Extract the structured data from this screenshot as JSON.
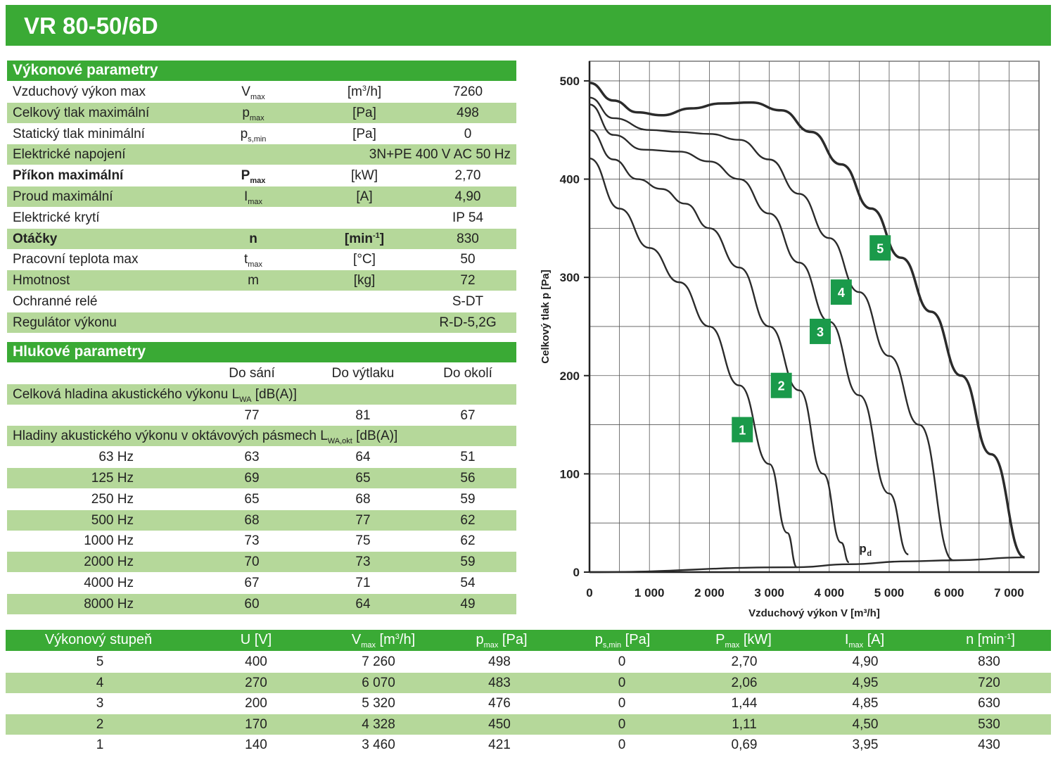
{
  "title": "VR 80-50/6D",
  "performance": {
    "heading": "Výkonové parametry",
    "rows": [
      {
        "name": "Vzduchový výkon max",
        "sym": "V",
        "sub": "max",
        "unit": "[m",
        "unit_sup": "3",
        "unit_end": "/h]",
        "val": "7260"
      },
      {
        "name": "Celkový tlak maximální",
        "sym": "p",
        "sub": "max",
        "unit": "[Pa]",
        "val": "498"
      },
      {
        "name": "Statický tlak minimální",
        "sym": "p",
        "sub": "s,min",
        "unit": "[Pa]",
        "val": "0"
      },
      {
        "name": "Elektrické napojení",
        "wide": "3N+PE 400 V AC 50 Hz"
      },
      {
        "name": "Příkon maximální",
        "sym": "P",
        "sub": "max",
        "unit": "[kW]",
        "val": "2,70"
      },
      {
        "name": "Proud maximální",
        "sym": "I",
        "sub": "max",
        "unit": "[A]",
        "val": "4,90"
      },
      {
        "name": "Elektrické krytí",
        "val": "IP 54"
      },
      {
        "name": "Otáčky",
        "sym": "n",
        "unit": "[min",
        "unit_sup": "-1",
        "unit_end": "]",
        "val": "830"
      },
      {
        "name": "Pracovní teplota max",
        "sym": "t",
        "sub": "max",
        "unit": "[°C]",
        "val": "50"
      },
      {
        "name": "Hmotnost",
        "sym": "m",
        "unit": "[kg]",
        "val": "72"
      },
      {
        "name": "Ochranné relé",
        "val": "S-DT"
      },
      {
        "name": "Regulátor výkonu",
        "val": "R-D-5,2G"
      }
    ]
  },
  "noise": {
    "heading": "Hlukové parametry",
    "col1": "Do sání",
    "col2": "Do výtlaku",
    "col3": "Do okolí",
    "total_label": "Celková hladina akustického výkonu L",
    "total_sub": "WA",
    "total_unit": " [dB(A)]",
    "total_values": [
      "77",
      "81",
      "67"
    ],
    "octave_label": "Hladiny akustického výkonu v oktávových pásmech L",
    "octave_sub": "WA,okt",
    "octave_unit": " [dB(A)]",
    "bands": [
      {
        "f": "63 Hz",
        "a": "63",
        "b": "64",
        "c": "51"
      },
      {
        "f": "125 Hz",
        "a": "69",
        "b": "65",
        "c": "56"
      },
      {
        "f": "250 Hz",
        "a": "65",
        "b": "68",
        "c": "59"
      },
      {
        "f": "500 Hz",
        "a": "68",
        "b": "77",
        "c": "62"
      },
      {
        "f": "1000 Hz",
        "a": "73",
        "b": "75",
        "c": "62"
      },
      {
        "f": "2000 Hz",
        "a": "70",
        "b": "73",
        "c": "59"
      },
      {
        "f": "4000 Hz",
        "a": "67",
        "b": "71",
        "c": "54"
      },
      {
        "f": "8000 Hz",
        "a": "60",
        "b": "64",
        "c": "49"
      }
    ]
  },
  "steps": {
    "h_step": "Výkonový stupeň",
    "h_u": "U   [V]",
    "h_v": "V",
    "h_v_sub": "max",
    "h_v_unit": "  [m",
    "h_v_sup": "3",
    "h_v_end": "/h]",
    "h_p": "p",
    "h_p_sub": "max",
    "h_p_unit": "  [Pa]",
    "h_ps": "p",
    "h_ps_sub": "s,min",
    "h_ps_unit": "  [Pa]",
    "h_P": "P",
    "h_P_sub": "max",
    "h_P_unit": "  [kW]",
    "h_I": "I",
    "h_I_sub": "max",
    "h_I_unit": "  [A]",
    "h_n": "n   [min",
    "h_n_sup": "-1",
    "h_n_end": "]",
    "rows": [
      [
        "5",
        "400",
        "7 260",
        "498",
        "0",
        "2,70",
        "4,90",
        "830"
      ],
      [
        "4",
        "270",
        "6 070",
        "483",
        "0",
        "2,06",
        "4,95",
        "720"
      ],
      [
        "3",
        "200",
        "5 320",
        "476",
        "0",
        "1,44",
        "4,85",
        "630"
      ],
      [
        "2",
        "170",
        "4 328",
        "450",
        "0",
        "1,11",
        "4,50",
        "530"
      ],
      [
        "1",
        "140",
        "3 460",
        "421",
        "0",
        "0,69",
        "3,95",
        "430"
      ]
    ]
  },
  "chart_data": {
    "type": "line",
    "xlabel": "Vzduchový výkon V [m³/h]",
    "ylabel": "Celkový tlak p [Pa]",
    "xlim": [
      0,
      7500
    ],
    "ylim": [
      0,
      500
    ],
    "x_ticks": [
      "0",
      "1 000",
      "2 000",
      "3 000",
      "4 000",
      "5 000",
      "6 000",
      "7 000"
    ],
    "y_ticks": [
      "0",
      "100",
      "200",
      "300",
      "400",
      "500"
    ],
    "pd_label": "p",
    "pd_sub": "d",
    "curve_color": "#2b2b2b",
    "label_color": "#1a9a4a",
    "series": [
      {
        "name": "1",
        "label_at": [
          2550,
          145
        ],
        "points": [
          [
            0,
            421
          ],
          [
            500,
            370
          ],
          [
            1000,
            330
          ],
          [
            1500,
            295
          ],
          [
            2000,
            250
          ],
          [
            2500,
            190
          ],
          [
            3000,
            110
          ],
          [
            3300,
            40
          ],
          [
            3460,
            5
          ]
        ]
      },
      {
        "name": "2",
        "label_at": [
          3200,
          190
        ],
        "points": [
          [
            0,
            450
          ],
          [
            400,
            420
          ],
          [
            800,
            400
          ],
          [
            1200,
            390
          ],
          [
            1600,
            375
          ],
          [
            2000,
            350
          ],
          [
            2500,
            310
          ],
          [
            3000,
            250
          ],
          [
            3500,
            185
          ],
          [
            3900,
            100
          ],
          [
            4200,
            30
          ],
          [
            4328,
            10
          ]
        ]
      },
      {
        "name": "3",
        "label_at": [
          3850,
          245
        ],
        "points": [
          [
            0,
            476
          ],
          [
            400,
            445
          ],
          [
            900,
            430
          ],
          [
            1500,
            428
          ],
          [
            2000,
            418
          ],
          [
            2500,
            400
          ],
          [
            3000,
            365
          ],
          [
            3500,
            315
          ],
          [
            4000,
            255
          ],
          [
            4500,
            180
          ],
          [
            5000,
            80
          ],
          [
            5320,
            18
          ]
        ]
      },
      {
        "name": "4",
        "label_at": [
          4200,
          285
        ],
        "points": [
          [
            0,
            483
          ],
          [
            400,
            462
          ],
          [
            1000,
            450
          ],
          [
            1500,
            448
          ],
          [
            2000,
            446
          ],
          [
            2500,
            440
          ],
          [
            3000,
            420
          ],
          [
            3500,
            385
          ],
          [
            4000,
            340
          ],
          [
            4500,
            285
          ],
          [
            5000,
            220
          ],
          [
            5500,
            150
          ],
          [
            6070,
            12
          ]
        ]
      },
      {
        "name": "5",
        "label_at": [
          4850,
          330
        ],
        "points": [
          [
            0,
            498
          ],
          [
            400,
            480
          ],
          [
            800,
            468
          ],
          [
            1200,
            465
          ],
          [
            1700,
            472
          ],
          [
            2200,
            477
          ],
          [
            2700,
            478
          ],
          [
            3200,
            470
          ],
          [
            3700,
            448
          ],
          [
            4200,
            415
          ],
          [
            4700,
            370
          ],
          [
            5200,
            320
          ],
          [
            5700,
            265
          ],
          [
            6200,
            200
          ],
          [
            6700,
            120
          ],
          [
            7260,
            15
          ]
        ]
      },
      {
        "name": "pd",
        "points": [
          [
            0,
            0
          ],
          [
            3460,
            5
          ],
          [
            4328,
            8
          ],
          [
            5320,
            11
          ],
          [
            6070,
            12
          ],
          [
            7260,
            15
          ]
        ]
      }
    ]
  }
}
